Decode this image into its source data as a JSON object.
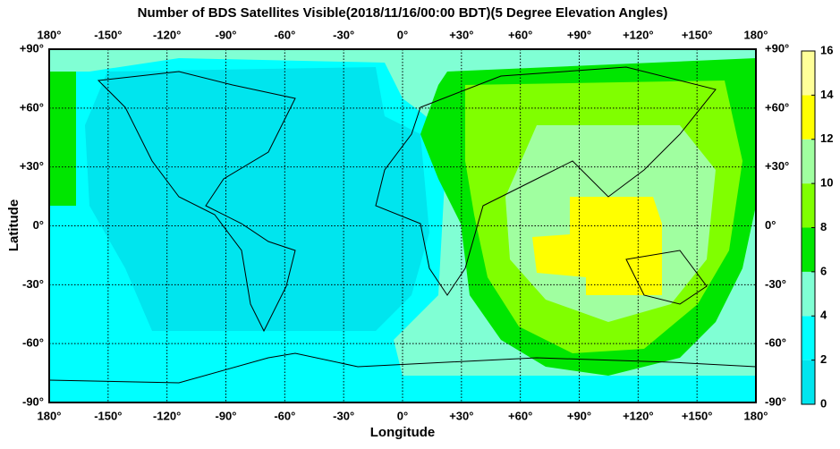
{
  "chart_data": {
    "type": "map",
    "title": "Number of BDS Satellites Visible(2018/11/16/00:00 BDT)(5 Degree Elevation Angles)",
    "xlabel": "Longitude",
    "ylabel": "Latitude",
    "xlim": [
      -180,
      180
    ],
    "ylim": [
      -90,
      90
    ],
    "xticks": [
      {
        "value": -180,
        "label": "180°"
      },
      {
        "value": -150,
        "label": "-150°"
      },
      {
        "value": -120,
        "label": "-120°"
      },
      {
        "value": -90,
        "label": "-90°"
      },
      {
        "value": -60,
        "label": "-60°"
      },
      {
        "value": -30,
        "label": "-30°"
      },
      {
        "value": 0,
        "label": "0°"
      },
      {
        "value": 30,
        "label": "+30°"
      },
      {
        "value": 60,
        "label": "+60°"
      },
      {
        "value": 90,
        "label": "+90°"
      },
      {
        "value": 120,
        "label": "+120°"
      },
      {
        "value": 150,
        "label": "+150°"
      },
      {
        "value": 180,
        "label": "180°"
      }
    ],
    "yticks": [
      {
        "value": 90,
        "label": "+90°"
      },
      {
        "value": 60,
        "label": "+60°"
      },
      {
        "value": 30,
        "label": "+30°"
      },
      {
        "value": 0,
        "label": "0°"
      },
      {
        "value": -30,
        "label": "-30°"
      },
      {
        "value": -60,
        "label": "-60°"
      },
      {
        "value": -90,
        "label": "-90°"
      }
    ],
    "grid": true,
    "colorbar": {
      "lim": [
        0,
        16
      ],
      "ticks": [
        0,
        2,
        4,
        6,
        8,
        10,
        12,
        14,
        16
      ],
      "colors": [
        "#00e5ee",
        "#00ffff",
        "#80ffd4",
        "#00e600",
        "#80ff00",
        "#a0ffa0",
        "#ffff00",
        "#ffff99"
      ]
    }
  }
}
